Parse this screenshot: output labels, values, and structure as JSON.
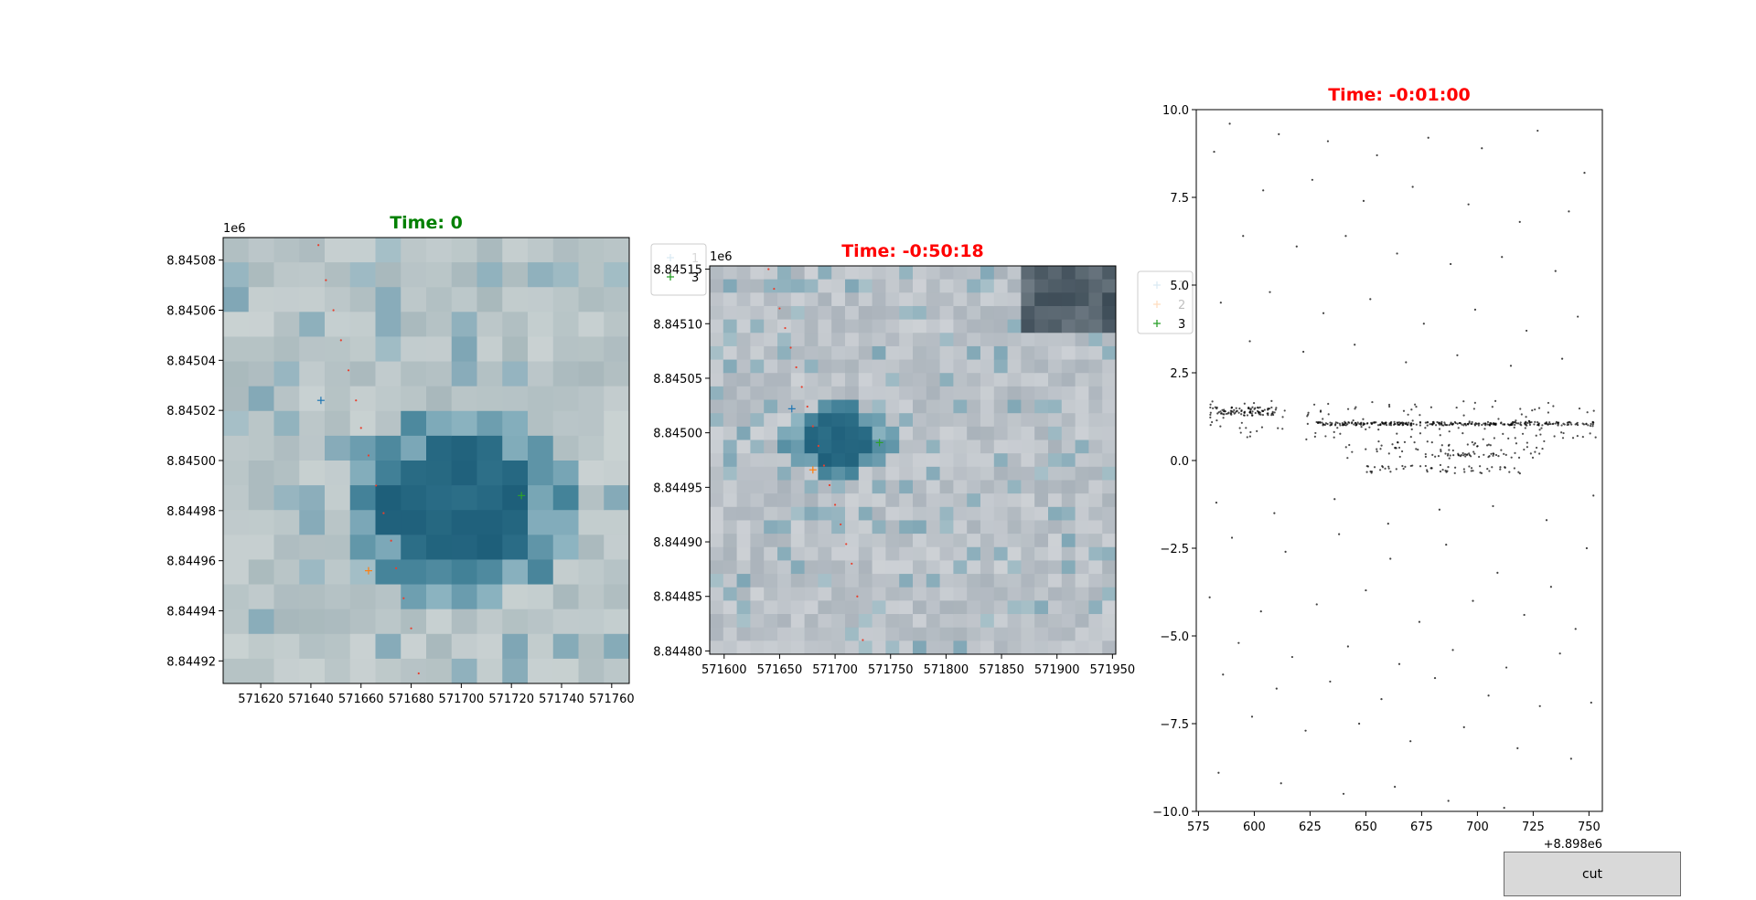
{
  "window": {
    "button_cut": "cut"
  },
  "colors": {
    "title_green": "#008000",
    "title_red": "#ff0000",
    "marker_1": "#1f77b4",
    "marker_2": "#ff7f0e",
    "marker_3": "#2ca02c",
    "track": "#e8402e",
    "scatter": "#000000"
  },
  "chart_data": [
    {
      "type": "heatmap",
      "title": "Time: 0",
      "title_color": "green",
      "xlim": [
        571605,
        571767
      ],
      "ylim": [
        8844911,
        8845089
      ],
      "x_ticks": [
        571620,
        571640,
        571660,
        571680,
        571700,
        571720,
        571740,
        571760
      ],
      "x_tick_labels": [
        "571620",
        "571640",
        "571660",
        "571680",
        "571700",
        "571720",
        "571740",
        "571760"
      ],
      "y_ticks": [
        8844920,
        8844940,
        8844960,
        8844980,
        8845000,
        8845020,
        8845040,
        8845060,
        8845080
      ],
      "y_tick_labels": [
        "8.84492",
        "8.84494",
        "8.84496",
        "8.84498",
        "8.84500",
        "8.84502",
        "8.84504",
        "8.84506",
        "8.84508"
      ],
      "y_offset_label": "1e6",
      "image": "satellite tile, ice surface with dark blue melt pond",
      "markers": [
        {
          "label": "1",
          "x": 571644,
          "y": 8845024,
          "color": "#1f77b4"
        },
        {
          "label": "2",
          "x": 571663,
          "y": 8844956,
          "color": "#ff7f0e"
        },
        {
          "label": "3",
          "x": 571724,
          "y": 8844986,
          "color": "#2ca02c"
        }
      ],
      "track": {
        "x": [
          571643,
          571646,
          571649,
          571652,
          571655,
          571658,
          571660,
          571663,
          571666,
          571669,
          571672,
          571674,
          571677,
          571680,
          571683
        ],
        "y": [
          8845086,
          8845072,
          8845060,
          8845048,
          8845036,
          8845024,
          8845013,
          8845002,
          8844990,
          8844979,
          8844968,
          8844957,
          8844945,
          8844933,
          8844915
        ]
      },
      "legend": {
        "placement": "outside top-right",
        "entries": [
          "1",
          "3"
        ]
      }
    },
    {
      "type": "heatmap",
      "title": "Time: -0:50:18",
      "title_color": "red",
      "xlim": [
        571587,
        571953
      ],
      "ylim": [
        8844797,
        8845153
      ],
      "x_ticks": [
        571600,
        571650,
        571700,
        571750,
        571800,
        571850,
        571900,
        571950
      ],
      "x_tick_labels": [
        "571600",
        "571650",
        "571700",
        "571750",
        "571800",
        "571850",
        "571900",
        "571950"
      ],
      "y_ticks": [
        8844800,
        8844850,
        8844900,
        8844950,
        8845000,
        8845050,
        8845100,
        8845150
      ],
      "y_tick_labels": [
        "8.84480",
        "8.84485",
        "8.84490",
        "8.84495",
        "8.84500",
        "8.84505",
        "8.84510",
        "8.84515"
      ],
      "y_offset_label": "1e6",
      "image": "satellite tile, ice surface with dark blue melt pond",
      "markers": [
        {
          "label": "1",
          "x": 571661,
          "y": 8845022,
          "color": "#1f77b4"
        },
        {
          "label": "2",
          "x": 571680,
          "y": 8844966,
          "color": "#ff7f0e"
        },
        {
          "label": "3",
          "x": 571740,
          "y": 8844991,
          "color": "#2ca02c"
        }
      ],
      "track": {
        "x": [
          571640,
          571645,
          571650,
          571655,
          571660,
          571665,
          571670,
          571675,
          571680,
          571685,
          571690,
          571695,
          571700,
          571705,
          571710,
          571715,
          571720,
          571725
        ],
        "y": [
          8845150,
          8845132,
          8845114,
          8845096,
          8845078,
          8845060,
          8845042,
          8845024,
          8845006,
          8844988,
          8844970,
          8844952,
          8844934,
          8844916,
          8844898,
          8844880,
          8844850,
          8844810
        ]
      },
      "legend": {
        "placement": "outside top-right",
        "entries": [
          "1",
          "2",
          "3"
        ]
      }
    },
    {
      "type": "scatter",
      "title": "Time: -0:01:00",
      "title_color": "red",
      "xlim": [
        8898574,
        8898756
      ],
      "ylim": [
        -10,
        10
      ],
      "x_ticks": [
        8898575,
        8898600,
        8898625,
        8898650,
        8898675,
        8898700,
        8898725,
        8898750
      ],
      "x_tick_labels": [
        "575",
        "600",
        "625",
        "650",
        "675",
        "700",
        "725",
        "750"
      ],
      "x_offset_label": "+8.898e6",
      "y_ticks": [
        -10,
        -7.5,
        -5,
        -2.5,
        0,
        2.5,
        5,
        7.5,
        10
      ],
      "y_tick_labels": [
        "−10.0",
        "−7.5",
        "−5.0",
        "−2.5",
        "0.0",
        "2.5",
        "5.0",
        "7.5",
        "10.0"
      ],
      "series": [
        {
          "x": [
            8898589,
            8898611,
            8898633,
            8898655,
            8898678,
            8898702,
            8898727,
            8898748,
            8898582,
            8898604,
            8898626,
            8898649,
            8898671,
            8898696,
            8898719,
            8898741,
            8898595,
            8898619,
            8898641,
            8898664,
            8898688,
            8898711,
            8898735,
            8898585,
            8898607,
            8898631,
            8898652,
            8898676,
            8898699,
            8898722,
            8898745,
            8898598,
            8898622,
            8898645,
            8898668,
            8898691,
            8898715,
            8898738,
            8898583,
            8898609,
            8898636,
            8898660,
            8898683,
            8898707,
            8898731,
            8898752
          ],
          "y": [
            9.6,
            9.3,
            9.1,
            8.7,
            9.2,
            8.9,
            9.4,
            8.2,
            8.8,
            7.7,
            8.0,
            7.4,
            7.8,
            7.3,
            6.8,
            7.1,
            6.4,
            6.1,
            6.4,
            5.9,
            5.6,
            5.8,
            5.4,
            4.5,
            4.8,
            4.2,
            4.6,
            3.9,
            4.3,
            3.7,
            4.1,
            3.4,
            3.1,
            3.3,
            2.8,
            3.0,
            2.7,
            2.9,
            -1.2,
            -1.5,
            -1.1,
            -1.8,
            -1.4,
            -1.3,
            -1.7,
            -1.0
          ]
        },
        {
          "x": [
            8898590,
            8898614,
            8898638,
            8898661,
            8898686,
            8898709,
            8898733,
            8898749,
            8898580,
            8898603,
            8898628,
            8898650,
            8898674,
            8898698,
            8898721,
            8898744,
            8898593,
            8898617,
            8898642,
            8898665,
            8898689,
            8898713,
            8898737,
            8898586,
            8898610,
            8898634,
            8898657,
            8898681,
            8898705,
            8898728,
            8898751,
            8898599,
            8898623,
            8898647,
            8898670,
            8898694,
            8898718,
            8898742,
            8898584,
            8898612,
            8898640,
            8898663,
            8898687,
            8898712
          ],
          "y": [
            -2.2,
            -2.6,
            -2.1,
            -2.8,
            -2.4,
            -3.2,
            -3.6,
            -2.5,
            -3.9,
            -4.3,
            -4.1,
            -3.7,
            -4.6,
            -4.0,
            -4.4,
            -4.8,
            -5.2,
            -5.6,
            -5.3,
            -5.8,
            -5.4,
            -5.9,
            -5.5,
            -6.1,
            -6.5,
            -6.3,
            -6.8,
            -6.2,
            -6.7,
            -7.0,
            -6.9,
            -7.3,
            -7.7,
            -7.5,
            -8.0,
            -7.6,
            -8.2,
            -8.5,
            -8.9,
            -9.2,
            -9.5,
            -9.3,
            -9.7,
            -9.9
          ]
        }
      ],
      "band_series": [
        {
          "y_center": 1.4,
          "x_range": [
            8898580,
            8898610
          ],
          "spread": 0.12
        },
        {
          "y_center": 1.05,
          "x_range": [
            8898628,
            8898752
          ],
          "spread": 0.05
        },
        {
          "y_center": 1.15,
          "x_range": [
            8898580,
            8898756
          ],
          "spread": 0.55
        },
        {
          "y_center": 0.3,
          "x_range": [
            8898640,
            8898730
          ],
          "spread": 0.25
        },
        {
          "y_center": -0.25,
          "x_range": [
            8898650,
            8898720
          ],
          "spread": 0.12
        },
        {
          "y_center": 0.15,
          "x_range": [
            8898680,
            8898710
          ],
          "spread": 0.05
        }
      ]
    }
  ]
}
